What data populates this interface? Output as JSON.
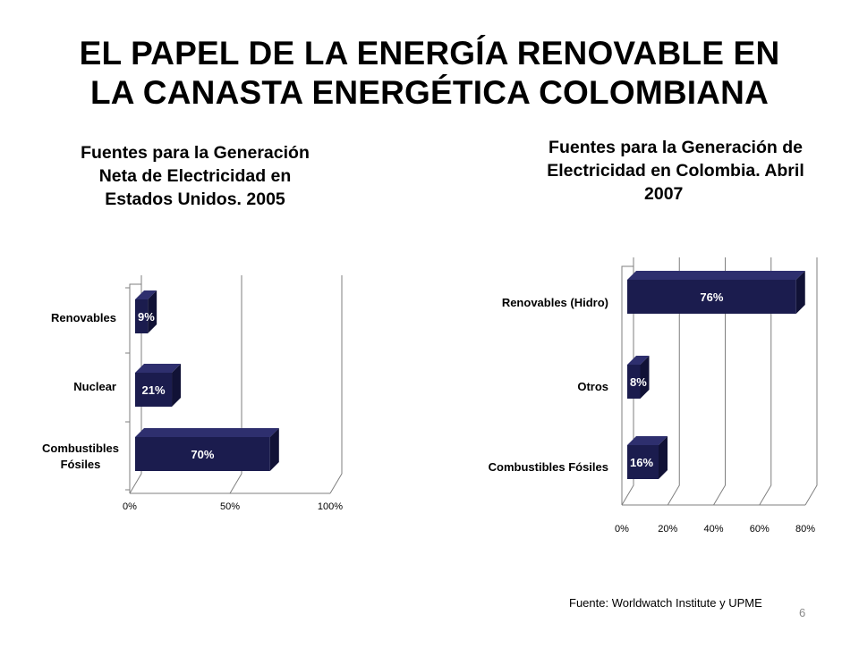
{
  "slide": {
    "title_line1": "EL PAPEL DE LA ENERGÍA RENOVABLE EN",
    "title_line2": "LA CANASTA ENERGÉTICA COLOMBIANA",
    "source": "Fuente: Worldwatch Institute y UPME",
    "page_number": "6"
  },
  "colors": {
    "bar_front": "#1b1c4e",
    "bar_top": "#2e2f6e",
    "bar_side": "#111236",
    "grid": "#7f7f7f",
    "label_text": "#ffffff"
  },
  "chart_data": [
    {
      "type": "bar",
      "orientation": "horizontal",
      "title_line1": "Fuentes para la Generación",
      "title_line2": "Neta  de Electricidad en",
      "title_line3": "Estados Unidos.  2005",
      "categories": [
        "Renovables",
        "Nuclear",
        "Combustibles Fósiles"
      ],
      "values": [
        9,
        21,
        70
      ],
      "data_labels": [
        "9%",
        "21%",
        "70%"
      ],
      "xlim": [
        0,
        100
      ],
      "x_ticks": [
        "0%",
        "50%",
        "100%"
      ]
    },
    {
      "type": "bar",
      "orientation": "horizontal",
      "title_line1": "Fuentes para la Generación de",
      "title_line2": "Electricidad en Colombia. Abril",
      "title_line3": "2007",
      "categories": [
        "Renovables (Hidro)",
        "Otros",
        "Combustibles Fósiles"
      ],
      "values": [
        76,
        8,
        16
      ],
      "data_labels": [
        "76%",
        "8%",
        "16%"
      ],
      "xlim": [
        0,
        80
      ],
      "x_ticks": [
        "0%",
        "20%",
        "40%",
        "60%",
        "80%"
      ]
    }
  ]
}
